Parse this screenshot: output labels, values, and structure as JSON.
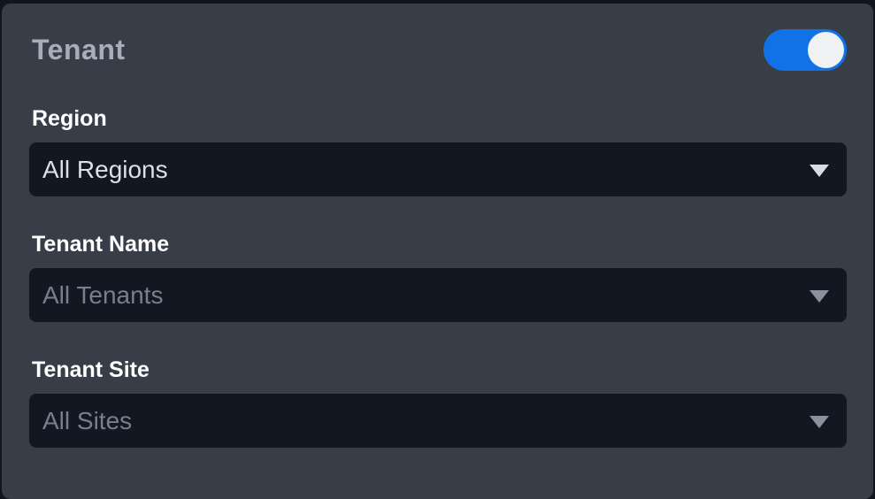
{
  "panel": {
    "title": "Tenant",
    "toggle": {
      "name": "tenant-filter-toggle",
      "state": "on"
    }
  },
  "fields": [
    {
      "label": "Region",
      "value": "All Regions",
      "disabled": false
    },
    {
      "label": "Tenant Name",
      "value": "All Tenants",
      "disabled": true
    },
    {
      "label": "Tenant Site",
      "value": "All Sites",
      "disabled": true
    }
  ],
  "colors": {
    "page_background": "#12151d",
    "card_background": "#383e48",
    "select_background": "#131722",
    "title_text": "#a8aeb9",
    "label_text": "#ffffff",
    "value_text": "#dcdfe4",
    "value_text_muted": "#787f8b",
    "toggle_on": "#1172e8",
    "toggle_knob": "#f0f1f3"
  }
}
